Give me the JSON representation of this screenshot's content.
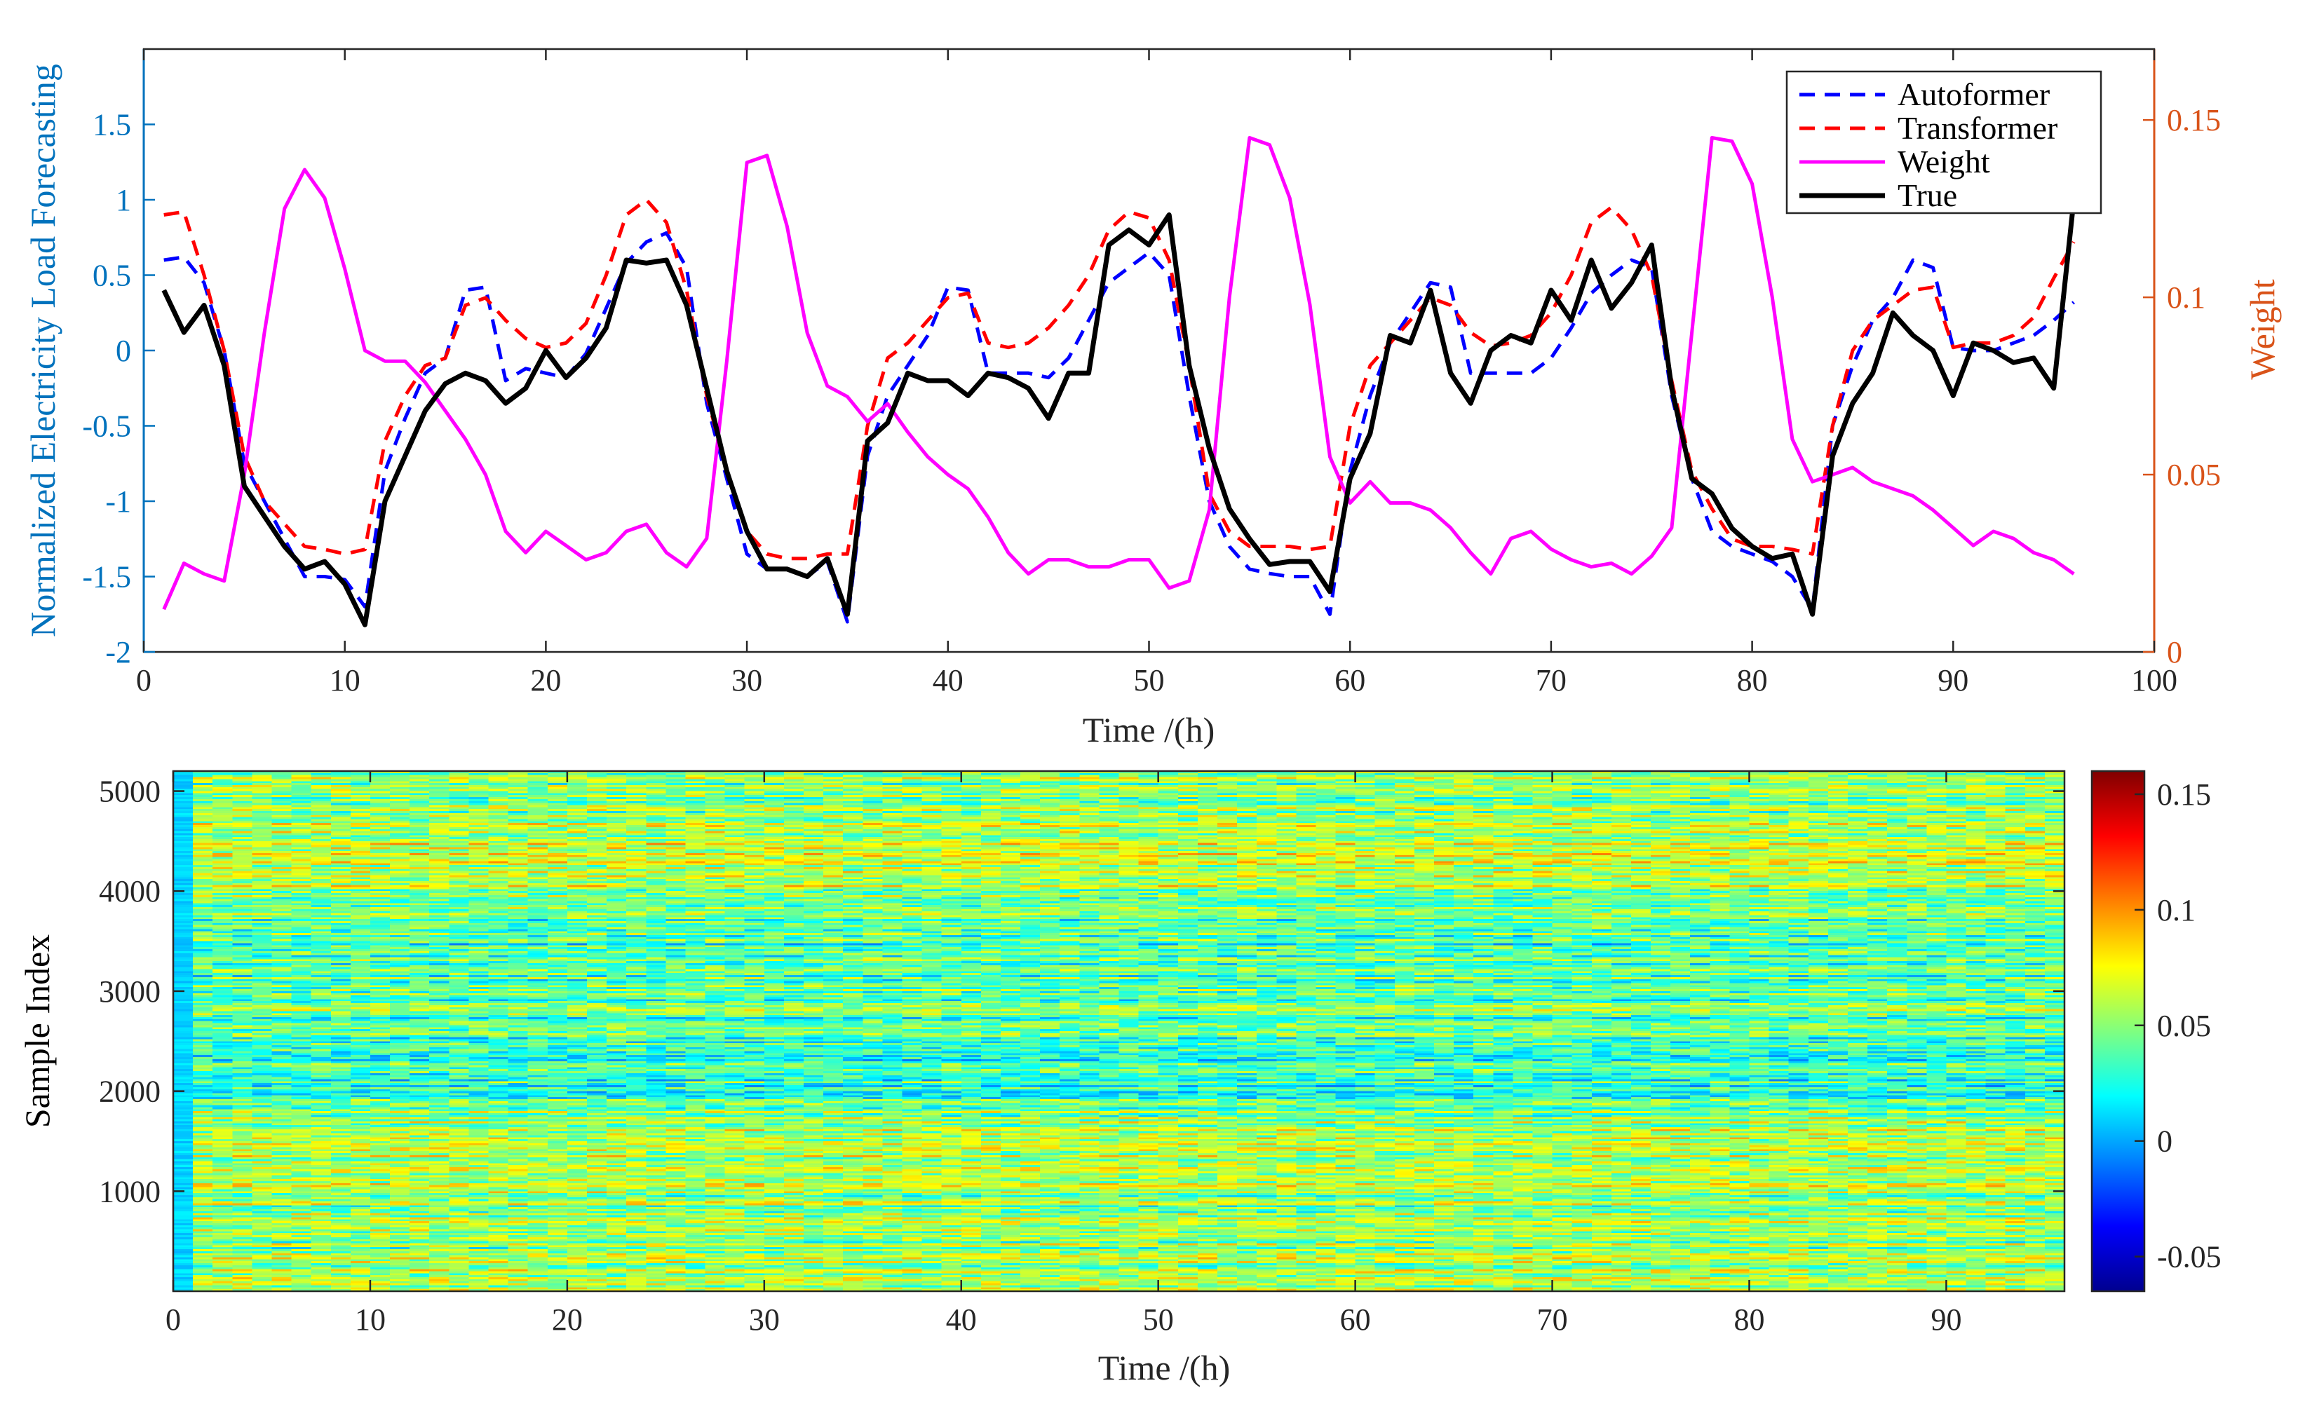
{
  "chart_data": [
    {
      "type": "line",
      "xlabel": "Time /(h)",
      "ylabel": "Normalized Electricity Load Forecasting",
      "y2label": "Weight",
      "xlim": [
        0,
        100
      ],
      "ylim": [
        -2,
        2
      ],
      "y2lim": [
        0,
        0.17
      ],
      "xticks": [
        "0",
        "10",
        "20",
        "30",
        "40",
        "50",
        "60",
        "70",
        "80",
        "90",
        "100"
      ],
      "yticks": [
        "-2",
        "-1.5",
        "-1",
        "-0.5",
        "0",
        "0.5",
        "1",
        "1.5"
      ],
      "y2ticks": [
        "0",
        "0.05",
        "0.1",
        "0.15"
      ],
      "legend_position": "top-right",
      "grid": false,
      "colors": {
        "left_axis": "#0072BD",
        "right_axis": "#D95319"
      },
      "x": [
        1,
        2,
        3,
        4,
        5,
        6,
        7,
        8,
        9,
        10,
        11,
        12,
        13,
        14,
        15,
        16,
        17,
        18,
        19,
        20,
        21,
        22,
        23,
        24,
        25,
        26,
        27,
        28,
        29,
        30,
        31,
        32,
        33,
        34,
        35,
        36,
        37,
        38,
        39,
        40,
        41,
        42,
        43,
        44,
        45,
        46,
        47,
        48,
        49,
        50,
        51,
        52,
        53,
        54,
        55,
        56,
        57,
        58,
        59,
        60,
        61,
        62,
        63,
        64,
        65,
        66,
        67,
        68,
        69,
        70,
        71,
        72,
        73,
        74,
        75,
        76,
        77,
        78,
        79,
        80,
        81,
        82,
        83,
        84,
        85,
        86,
        87,
        88,
        89,
        90,
        91,
        92,
        93,
        94,
        95,
        96
      ],
      "series": [
        {
          "name": "Autoformer",
          "color": "#0000FF",
          "dash": "dashed",
          "axis": "left",
          "values": [
            0.6,
            0.62,
            0.45,
            0.0,
            -0.75,
            -1.0,
            -1.25,
            -1.5,
            -1.5,
            -1.52,
            -1.7,
            -0.8,
            -0.45,
            -0.15,
            -0.05,
            0.4,
            0.42,
            -0.2,
            -0.12,
            -0.15,
            -0.18,
            -0.02,
            0.28,
            0.58,
            0.72,
            0.78,
            0.55,
            -0.35,
            -0.85,
            -1.35,
            -1.45,
            -1.45,
            -1.5,
            -1.4,
            -1.8,
            -0.7,
            -0.3,
            -0.1,
            0.1,
            0.42,
            0.4,
            -0.15,
            -0.15,
            -0.15,
            -0.18,
            -0.05,
            0.2,
            0.45,
            0.55,
            0.65,
            0.5,
            -0.3,
            -1.0,
            -1.3,
            -1.45,
            -1.48,
            -1.5,
            -1.5,
            -1.75,
            -0.8,
            -0.3,
            0.05,
            0.25,
            0.45,
            0.42,
            -0.15,
            -0.15,
            -0.15,
            -0.15,
            -0.05,
            0.15,
            0.38,
            0.5,
            0.6,
            0.55,
            -0.3,
            -0.85,
            -1.2,
            -1.3,
            -1.35,
            -1.4,
            -1.5,
            -1.72,
            -0.5,
            -0.1,
            0.2,
            0.35,
            0.6,
            0.55,
            0.02,
            0.0,
            0.0,
            0.05,
            0.1,
            0.2,
            0.32
          ]
        },
        {
          "name": "Transformer",
          "color": "#FF0000",
          "dash": "dashed",
          "axis": "left",
          "values": [
            0.9,
            0.92,
            0.5,
            0.0,
            -0.7,
            -1.0,
            -1.15,
            -1.3,
            -1.32,
            -1.35,
            -1.32,
            -0.6,
            -0.3,
            -0.1,
            -0.05,
            0.3,
            0.35,
            0.2,
            0.08,
            0.02,
            0.05,
            0.18,
            0.5,
            0.9,
            1.0,
            0.85,
            0.4,
            -0.3,
            -0.8,
            -1.2,
            -1.35,
            -1.38,
            -1.38,
            -1.35,
            -1.35,
            -0.5,
            -0.05,
            0.05,
            0.2,
            0.35,
            0.38,
            0.05,
            0.02,
            0.05,
            0.15,
            0.3,
            0.5,
            0.8,
            0.92,
            0.88,
            0.6,
            -0.1,
            -0.95,
            -1.2,
            -1.3,
            -1.3,
            -1.3,
            -1.32,
            -1.3,
            -0.5,
            -0.1,
            0.05,
            0.2,
            0.35,
            0.3,
            0.12,
            0.03,
            0.05,
            0.1,
            0.25,
            0.5,
            0.85,
            0.95,
            0.8,
            0.5,
            -0.2,
            -0.8,
            -1.05,
            -1.25,
            -1.3,
            -1.3,
            -1.32,
            -1.35,
            -0.5,
            0.0,
            0.2,
            0.3,
            0.4,
            0.42,
            0.02,
            0.05,
            0.05,
            0.1,
            0.22,
            0.48,
            0.72
          ]
        },
        {
          "name": "Weight",
          "color": "#FF00FF",
          "dash": "solid",
          "axis": "right",
          "values": [
            0.012,
            0.025,
            0.022,
            0.02,
            0.05,
            0.09,
            0.125,
            0.136,
            0.128,
            0.108,
            0.085,
            0.082,
            0.082,
            0.076,
            0.068,
            0.06,
            0.05,
            0.034,
            0.028,
            0.034,
            0.03,
            0.026,
            0.028,
            0.034,
            0.036,
            0.028,
            0.024,
            0.032,
            0.082,
            0.138,
            0.14,
            0.12,
            0.09,
            0.075,
            0.072,
            0.065,
            0.07,
            0.062,
            0.055,
            0.05,
            0.046,
            0.038,
            0.028,
            0.022,
            0.026,
            0.026,
            0.024,
            0.024,
            0.026,
            0.026,
            0.018,
            0.02,
            0.04,
            0.1,
            0.145,
            0.143,
            0.128,
            0.098,
            0.055,
            0.042,
            0.048,
            0.042,
            0.042,
            0.04,
            0.035,
            0.028,
            0.022,
            0.032,
            0.034,
            0.029,
            0.026,
            0.024,
            0.025,
            0.022,
            0.027,
            0.035,
            0.09,
            0.145,
            0.144,
            0.132,
            0.1,
            0.06,
            0.048,
            0.05,
            0.052,
            0.048,
            0.046,
            0.044,
            0.04,
            0.035,
            0.03,
            0.034,
            0.032,
            0.028,
            0.026,
            0.022
          ]
        },
        {
          "name": "True",
          "color": "#000000",
          "dash": "solid",
          "axis": "left",
          "values": [
            0.4,
            0.12,
            0.3,
            -0.1,
            -0.9,
            -1.1,
            -1.3,
            -1.45,
            -1.4,
            -1.55,
            -1.82,
            -1.0,
            -0.7,
            -0.4,
            -0.22,
            -0.15,
            -0.2,
            -0.35,
            -0.25,
            0.0,
            -0.18,
            -0.05,
            0.15,
            0.6,
            0.58,
            0.6,
            0.3,
            -0.25,
            -0.8,
            -1.2,
            -1.45,
            -1.45,
            -1.5,
            -1.38,
            -1.75,
            -0.6,
            -0.48,
            -0.15,
            -0.2,
            -0.2,
            -0.3,
            -0.15,
            -0.18,
            -0.25,
            -0.45,
            -0.15,
            -0.15,
            0.7,
            0.8,
            0.7,
            0.9,
            -0.1,
            -0.65,
            -1.05,
            -1.25,
            -1.42,
            -1.4,
            -1.4,
            -1.6,
            -0.85,
            -0.55,
            0.1,
            0.05,
            0.4,
            -0.15,
            -0.35,
            0.0,
            0.1,
            0.05,
            0.4,
            0.2,
            0.6,
            0.28,
            0.45,
            0.7,
            -0.25,
            -0.85,
            -0.95,
            -1.18,
            -1.3,
            -1.38,
            -1.35,
            -1.75,
            -0.7,
            -0.35,
            -0.15,
            0.25,
            0.1,
            0.0,
            -0.3,
            0.05,
            0.0,
            -0.08,
            -0.05,
            -0.25,
            1.0
          ]
        }
      ]
    },
    {
      "type": "heatmap",
      "xlabel": "Time /(h)",
      "ylabel": "Sample Index",
      "xlim": [
        0,
        96
      ],
      "ylim": [
        0,
        5200
      ],
      "xticks": [
        "0",
        "10",
        "20",
        "30",
        "40",
        "50",
        "60",
        "70",
        "80",
        "90"
      ],
      "yticks": [
        "1000",
        "2000",
        "3000",
        "4000",
        "5000"
      ],
      "colorbar": {
        "range": [
          -0.065,
          0.16
        ],
        "ticks": [
          "-0.05",
          "0",
          "0.05",
          "0.1",
          "0.15"
        ],
        "colormap": "jet"
      }
    }
  ]
}
